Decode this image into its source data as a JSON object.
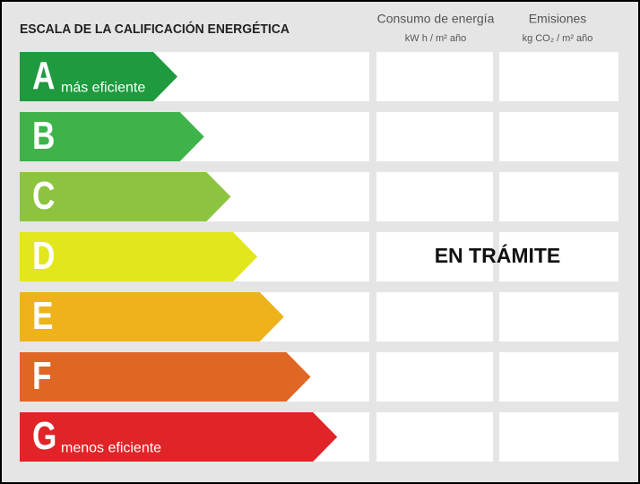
{
  "header": {
    "title": "ESCALA DE LA CALIFICACIÓN ENERGÉTICA",
    "columns": [
      {
        "title": "Consumo de energía",
        "unit": "kW h / m² año"
      },
      {
        "title": "Emisiones",
        "unit": "kg CO₂ / m² año"
      }
    ]
  },
  "rows": [
    {
      "letter": "A",
      "note": "más eficiente",
      "color": "#1f9a3e"
    },
    {
      "letter": "B",
      "color": "#3db34a"
    },
    {
      "letter": "C",
      "color": "#8cc43f"
    },
    {
      "letter": "D",
      "color": "#e2e61c"
    },
    {
      "letter": "E",
      "color": "#eeb31a"
    },
    {
      "letter": "F",
      "color": "#e06623"
    },
    {
      "letter": "G",
      "note": "menos eficiente",
      "color": "#e02428"
    }
  ],
  "status": "EN TRÁMITE"
}
